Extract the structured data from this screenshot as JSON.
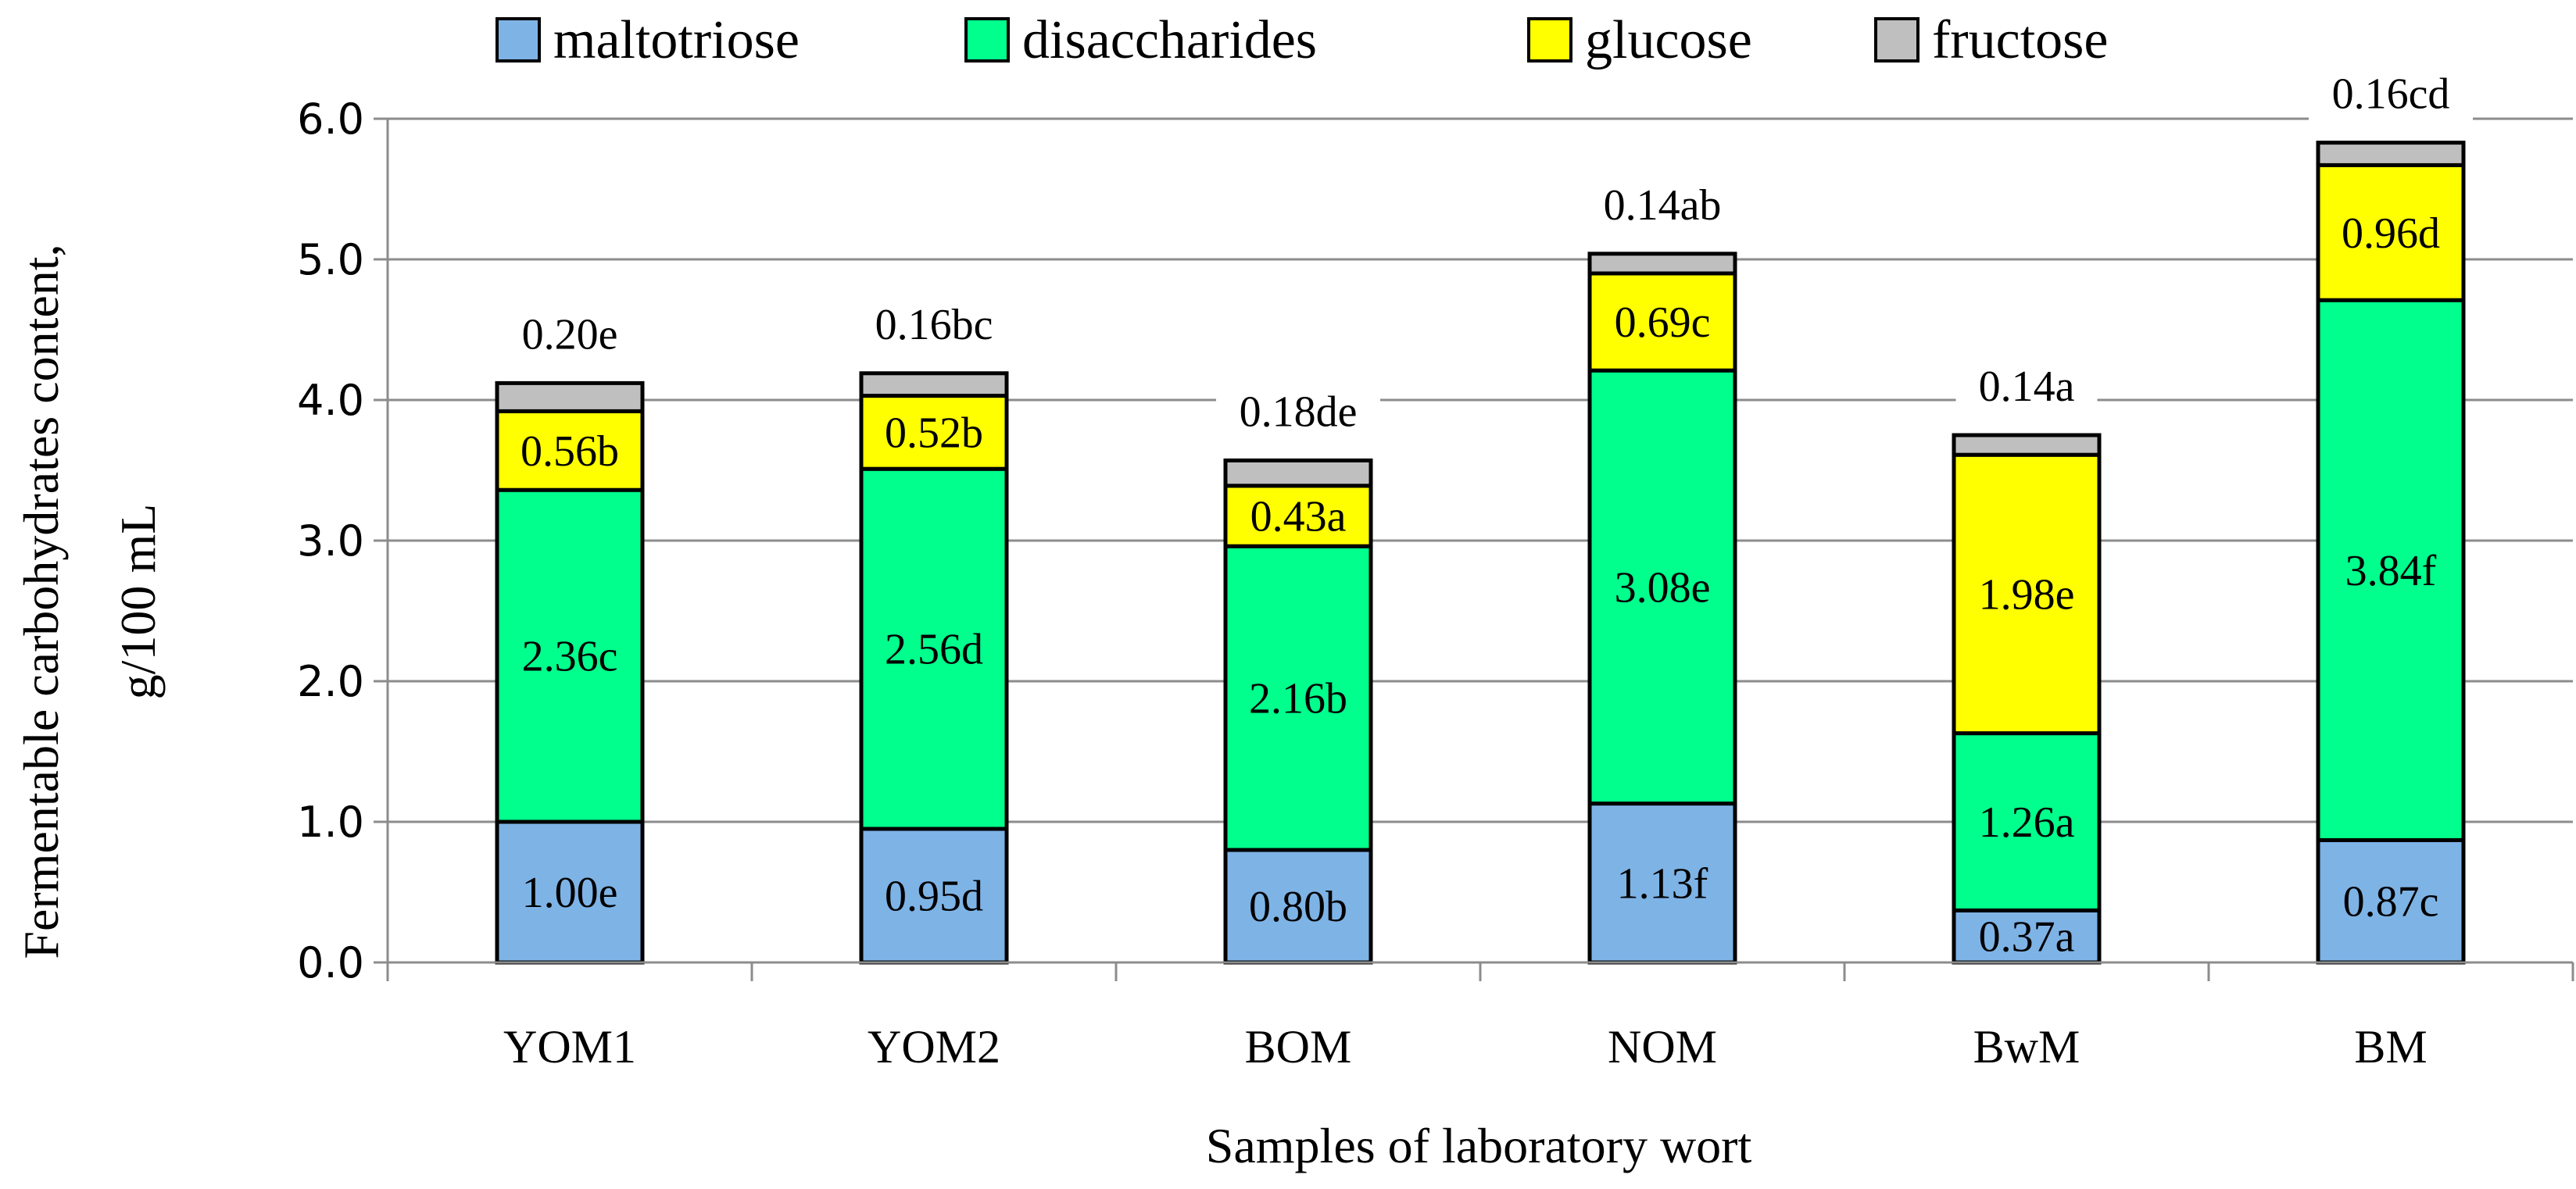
{
  "chart_data": {
    "type": "bar",
    "stacked": true,
    "title": "",
    "xlabel": "Samples of laboratory wort",
    "ylabel_lines": [
      "Fermentable carbohydrates content,",
      "g/100 mL"
    ],
    "ylim": [
      0,
      6
    ],
    "yticks": [
      "0.0",
      "1.0",
      "2.0",
      "3.0",
      "4.0",
      "5.0",
      "6.0"
    ],
    "grid": true,
    "legend_position": "top",
    "categories": [
      "YOM1",
      "YOM2",
      "BOM",
      "NOM",
      "BwM",
      "BM"
    ],
    "series": [
      {
        "name": "maltotriose",
        "color": "#7eb3e6",
        "values": [
          1.0,
          0.95,
          0.8,
          1.13,
          0.37,
          0.87
        ],
        "labels": [
          "1.00e",
          "0.95d",
          "0.80b",
          "1.13f",
          "0.37a",
          "0.87c"
        ]
      },
      {
        "name": "disaccharides",
        "color": "#00ff8c",
        "values": [
          2.36,
          2.56,
          2.16,
          3.08,
          1.26,
          3.84
        ],
        "labels": [
          "2.36c",
          "2.56d",
          "2.16b",
          "3.08e",
          "1.26a",
          "3.84f"
        ]
      },
      {
        "name": "glucose",
        "color": "#ffff00",
        "values": [
          0.56,
          0.52,
          0.43,
          0.69,
          1.98,
          0.96
        ],
        "labels": [
          "0.56b",
          "0.52b",
          "0.43a",
          "0.69c",
          "1.98e",
          "0.96d"
        ]
      },
      {
        "name": "fructose",
        "color": "#bfbfbf",
        "values": [
          0.2,
          0.16,
          0.18,
          0.14,
          0.14,
          0.16
        ],
        "labels": [
          "0.20e",
          "0.16bc",
          "0.18de",
          "0.14ab",
          "0.14a",
          "0.16cd"
        ]
      }
    ]
  }
}
